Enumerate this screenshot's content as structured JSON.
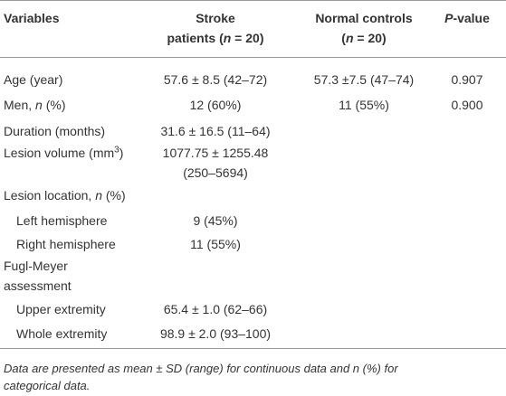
{
  "table": {
    "header": [
      [
        "Variables"
      ],
      [
        "Stroke",
        "patients (",
        "n",
        " = 20)"
      ],
      [
        "Normal controls",
        "(",
        "n",
        " = 20)"
      ],
      [
        "P",
        "-value"
      ]
    ],
    "rows": [
      [
        "Age (year)",
        "57.6 ± 8.5 (42–72)",
        "57.3 ±7.5 (47–74)",
        "0.907"
      ],
      [
        [
          "Men, ",
          "n",
          " (%)"
        ],
        "12 (60%)",
        "11 (55%)",
        "0.900"
      ],
      [
        "Duration (months)",
        "31.6 ± 16.5 (11–64)"
      ],
      [
        [
          "Lesion volume (mm",
          "3",
          ")"
        ],
        [
          "1077.75 ± 1255.48",
          "(250–5694)"
        ]
      ],
      [
        [
          "Lesion location, ",
          "n",
          " (%)"
        ]
      ],
      [
        "Left hemisphere",
        "9 (45%)"
      ],
      [
        "Right hemisphere",
        "11 (55%)"
      ],
      [
        [
          "Fugl-Meyer",
          "assessment"
        ]
      ],
      [
        "Upper extremity",
        "65.4 ± 1.0 (62–66)"
      ],
      [
        "Whole extremity",
        "98.9 ± 2.0 (93–100)"
      ]
    ],
    "footnote": [
      "Data are presented as mean ± SD (range) for continuous data and n (%) for",
      "categorical data."
    ]
  }
}
